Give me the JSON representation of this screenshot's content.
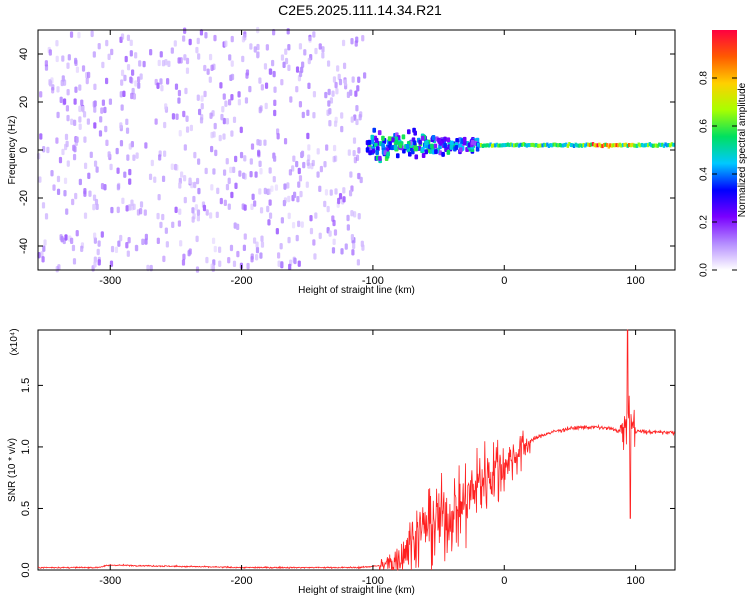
{
  "figure": {
    "title": "C2E5.2025.111.14.34.R21"
  },
  "chart_data": [
    {
      "type": "heatmap",
      "title": "C2E5.2025.111.14.34.R21",
      "xlabel": "Height of straight line (km)",
      "ylabel": "Frequency (Hz)",
      "xlim": [
        -355,
        130
      ],
      "ylim": [
        -50,
        50
      ],
      "x_ticks": [
        -300,
        -200,
        -100,
        0,
        100
      ],
      "y_ticks": [
        -40,
        -20,
        0,
        20,
        40
      ],
      "colorbar": {
        "label": "Normalized spectral amplitude",
        "range": [
          0,
          1
        ],
        "ticks": [
          0.0,
          0.2,
          0.4,
          0.6,
          0.8
        ],
        "colormap": [
          "#ffffff",
          "#b48cff",
          "#7a00ff",
          "#0000ff",
          "#00c8ff",
          "#00e060",
          "#a8ff00",
          "#ffd000",
          "#ff5a00",
          "#ff0040"
        ]
      },
      "regions": [
        {
          "description": "noise",
          "x_range": [
            -355,
            -105
          ],
          "freq_range": [
            -50,
            50
          ],
          "amplitude_range": [
            0.05,
            0.15
          ]
        },
        {
          "description": "onset",
          "x_range": [
            -105,
            -20
          ],
          "freq_range": [
            -12,
            12
          ],
          "amplitude_range": [
            0.15,
            0.6
          ]
        },
        {
          "description": "tone",
          "x_range": [
            -20,
            130
          ],
          "freq_center": [
            2,
            1
          ],
          "amplitude_range": [
            0.4,
            1.0
          ]
        }
      ]
    },
    {
      "type": "line",
      "xlabel": "Height of straight line (km)",
      "ylabel": "SNR (10 * v/v)",
      "y_multiplier": "(x10⁴)",
      "color": "#ff2020",
      "xlim": [
        -355,
        130
      ],
      "ylim": [
        0,
        1.95
      ],
      "x_ticks": [
        -300,
        -200,
        -100,
        0,
        100
      ],
      "y_ticks": [
        0.0,
        0.5,
        1.0,
        1.5
      ],
      "x": [
        -355,
        -310,
        -300,
        -250,
        -200,
        -150,
        -110,
        -90,
        -80,
        -70,
        -60,
        -50,
        -40,
        -30,
        -20,
        -10,
        0,
        10,
        20,
        30,
        40,
        50,
        60,
        70,
        80,
        90,
        95,
        100,
        110,
        120,
        130
      ],
      "y": [
        0.02,
        0.02,
        0.04,
        0.03,
        0.02,
        0.02,
        0.02,
        0.04,
        0.1,
        0.25,
        0.35,
        0.4,
        0.45,
        0.55,
        0.7,
        0.8,
        0.85,
        0.95,
        1.05,
        1.1,
        1.13,
        1.15,
        1.16,
        1.16,
        1.15,
        1.12,
        1.2,
        1.13,
        1.12,
        1.12,
        1.12
      ],
      "peaks": [
        {
          "x": 94,
          "y": 1.95
        },
        {
          "x": 96,
          "y": 0.42
        }
      ]
    }
  ]
}
